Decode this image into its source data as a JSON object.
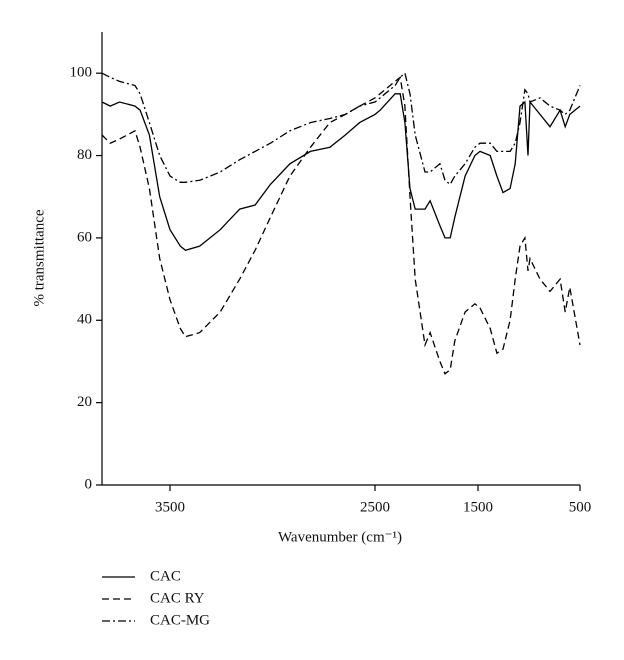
{
  "chart_data": {
    "type": "line",
    "xlabel": "Wavenumber (cm⁻¹)",
    "ylabel": "% transmittance",
    "x": [
      3830,
      3790,
      3745,
      3670,
      3645,
      3600,
      3550,
      3500,
      3450,
      3425,
      3355,
      3255,
      3160,
      3085,
      3010,
      2915,
      2815,
      2720,
      2645,
      2575,
      2500,
      2450,
      2305,
      2255,
      2210,
      2160,
      2110,
      2015,
      1965,
      1870,
      1820,
      1770,
      1725,
      1625,
      1530,
      1480,
      1380,
      1315,
      1255,
      1185,
      1135,
      1088,
      1040,
      1010,
      990,
      892,
      794,
      695,
      645,
      600,
      500
    ],
    "series": [
      {
        "name": "CAC",
        "color": "#000000",
        "dash": "solid",
        "values": [
          93,
          92,
          93,
          92,
          91,
          85,
          70,
          62,
          58,
          57,
          58,
          62,
          67,
          68,
          73,
          78,
          81,
          82,
          85,
          88,
          90,
          91,
          95,
          95,
          88,
          72,
          67,
          67,
          69,
          63,
          60,
          60,
          65,
          75,
          80,
          81,
          80,
          75,
          71,
          72,
          78,
          92,
          93,
          80,
          93,
          90,
          87,
          91,
          87,
          90,
          92
        ]
      },
      {
        "name": "CAC RY",
        "color": "#000000",
        "dash": "dashed",
        "values": [
          85,
          83,
          84,
          86,
          82,
          72,
          55,
          45,
          38,
          36,
          37,
          42,
          50,
          57,
          65,
          75,
          82,
          88,
          90,
          92,
          94,
          95,
          98,
          99,
          92,
          70,
          50,
          34,
          37,
          30,
          27,
          28,
          35,
          42,
          44,
          43,
          38,
          32,
          33,
          40,
          50,
          58,
          60,
          52,
          55,
          50,
          47,
          50,
          42,
          48,
          34
        ]
      },
      {
        "name": "CAC-MG",
        "color": "#000000",
        "dash": "dashdot",
        "values": [
          100,
          99,
          98,
          97,
          95,
          88,
          80,
          75,
          73.5,
          73.5,
          74,
          76,
          79,
          81,
          83,
          86,
          88,
          89,
          90,
          92,
          93,
          94,
          97,
          99,
          100,
          95,
          85,
          76,
          76,
          78,
          74,
          73,
          75,
          78,
          82,
          83,
          83,
          81,
          81,
          81,
          83,
          88,
          96,
          95,
          93,
          94,
          92,
          91,
          90,
          91,
          97
        ]
      }
    ],
    "xlim": [
      3830,
      500
    ],
    "xticks": [
      3500,
      2500,
      1500,
      500
    ],
    "ylim": [
      0,
      110
    ],
    "yticks": [
      0,
      20,
      40,
      60,
      80,
      100
    ],
    "grid": false,
    "legend": "bottom-left"
  }
}
